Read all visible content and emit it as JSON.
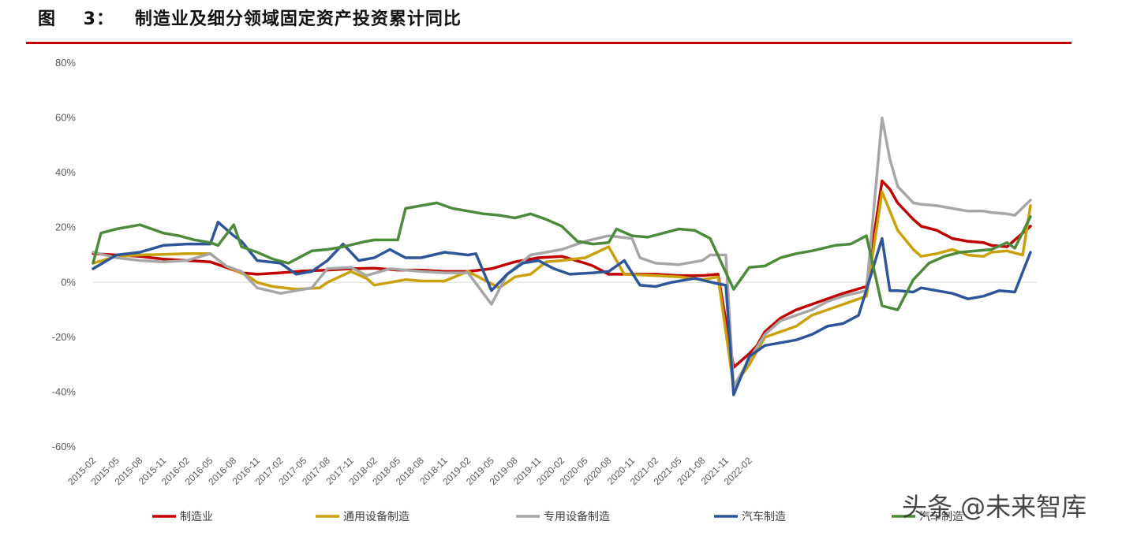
{
  "figure_title": "图    3：   制造业及细分领域固定资产投资累计同比",
  "watermark": "头条 @未来智库",
  "colors": {
    "rule": "#c00000",
    "axis": "#d9d9d9",
    "series": [
      "#c00000",
      "#c9a10a",
      "#a6a6a6",
      "#2e5597",
      "#4e8a3c"
    ]
  },
  "chart_data": {
    "type": "line",
    "ylim": [
      -60,
      80
    ],
    "yticks": [
      -60,
      -40,
      -20,
      0,
      20,
      40,
      60,
      80
    ],
    "ytick_labels": [
      "-60%",
      "-40%",
      "-20%",
      "0%",
      "20%",
      "40%",
      "60%",
      "80%"
    ],
    "xtick_labels": [
      "2015-02",
      "2015-05",
      "2015-08",
      "2015-11",
      "2016-02",
      "2016-05",
      "2016-08",
      "2016-11",
      "2017-02",
      "2017-05",
      "2017-08",
      "2017-11",
      "2018-02",
      "2018-05",
      "2018-08",
      "2018-11",
      "2019-02",
      "2019-05",
      "2019-08",
      "2019-11",
      "2020-02",
      "2020-05",
      "2020-08",
      "2020-11",
      "2021-02",
      "2021-05",
      "2021-08",
      "2021-11",
      "2022-02"
    ],
    "x_start": "2015-02",
    "x_end": "2022-02",
    "legend_position": "bottom",
    "series": [
      {
        "name": "制造业",
        "anchors": [
          [
            0,
            10.5
          ],
          [
            3,
            10
          ],
          [
            6,
            9.5
          ],
          [
            9,
            8.5
          ],
          [
            12,
            8
          ],
          [
            15,
            7.5
          ],
          [
            16,
            6.5
          ],
          [
            18,
            4.5
          ],
          [
            19,
            3.5
          ],
          [
            21,
            3
          ],
          [
            24,
            3.5
          ],
          [
            27,
            4.2
          ],
          [
            30,
            4.5
          ],
          [
            33,
            5
          ],
          [
            36,
            5.2
          ],
          [
            39,
            4.5
          ],
          [
            42,
            4.5
          ],
          [
            45,
            4
          ],
          [
            48,
            4
          ],
          [
            51,
            5
          ],
          [
            54,
            7.5
          ],
          [
            57,
            9
          ],
          [
            60,
            9.5
          ],
          [
            63,
            7
          ],
          [
            64,
            6
          ],
          [
            66,
            3
          ],
          [
            69,
            3
          ],
          [
            72,
            3
          ],
          [
            75,
            2.5
          ],
          [
            78,
            2.5
          ],
          [
            80,
            3
          ],
          [
            82,
            -31
          ],
          [
            84,
            -26
          ],
          [
            85,
            -23
          ],
          [
            86,
            -18
          ],
          [
            88,
            -13
          ],
          [
            90,
            -10
          ],
          [
            92,
            -8
          ],
          [
            94,
            -6
          ],
          [
            96,
            -4
          ],
          [
            99,
            -1.5
          ],
          [
            101,
            37
          ],
          [
            102,
            34
          ],
          [
            103,
            29
          ],
          [
            105,
            23
          ],
          [
            106,
            20.5
          ],
          [
            108,
            19
          ],
          [
            110,
            16
          ],
          [
            112,
            15
          ],
          [
            114,
            14.5
          ],
          [
            115,
            13.5
          ],
          [
            117,
            13
          ],
          [
            120,
            20.5
          ]
        ]
      },
      {
        "name": "通用设备制造",
        "anchors": [
          [
            0,
            7
          ],
          [
            3,
            9.5
          ],
          [
            6,
            10
          ],
          [
            9,
            10.2
          ],
          [
            12,
            10.5
          ],
          [
            15,
            10.5
          ],
          [
            17,
            6
          ],
          [
            20,
            2
          ],
          [
            21,
            0
          ],
          [
            23,
            -1.5
          ],
          [
            26,
            -2.5
          ],
          [
            29,
            -2
          ],
          [
            30,
            0
          ],
          [
            33,
            4
          ],
          [
            35,
            1.5
          ],
          [
            36,
            -1
          ],
          [
            38,
            0
          ],
          [
            40,
            1
          ],
          [
            42,
            0.5
          ],
          [
            45,
            0.5
          ],
          [
            48,
            4
          ],
          [
            50,
            1
          ],
          [
            52,
            -2
          ],
          [
            54,
            2
          ],
          [
            56,
            3
          ],
          [
            58,
            7.5
          ],
          [
            60,
            8
          ],
          [
            63,
            9
          ],
          [
            66,
            13
          ],
          [
            68,
            3
          ],
          [
            72,
            2.5
          ],
          [
            75,
            2
          ],
          [
            78,
            1
          ],
          [
            80,
            2
          ],
          [
            82,
            -38
          ],
          [
            84,
            -30
          ],
          [
            86,
            -20
          ],
          [
            88,
            -18
          ],
          [
            90,
            -16
          ],
          [
            92,
            -12
          ],
          [
            94,
            -10
          ],
          [
            96,
            -8
          ],
          [
            99,
            -5
          ],
          [
            101,
            33
          ],
          [
            102,
            26
          ],
          [
            103,
            19
          ],
          [
            105,
            12
          ],
          [
            106,
            9.5
          ],
          [
            108,
            10.5
          ],
          [
            110,
            12
          ],
          [
            112,
            10
          ],
          [
            114,
            9.5
          ],
          [
            115,
            11
          ],
          [
            117,
            11.5
          ],
          [
            119,
            10
          ],
          [
            120,
            28
          ]
        ]
      },
      {
        "name": "专用设备制造",
        "anchors": [
          [
            0,
            11
          ],
          [
            3,
            9
          ],
          [
            6,
            8
          ],
          [
            9,
            7.5
          ],
          [
            12,
            8
          ],
          [
            15,
            10.5
          ],
          [
            17,
            6
          ],
          [
            19,
            4
          ],
          [
            21,
            -2
          ],
          [
            24,
            -4
          ],
          [
            26,
            -3
          ],
          [
            28,
            -2
          ],
          [
            30,
            5
          ],
          [
            33,
            5.5
          ],
          [
            35,
            2.5
          ],
          [
            38,
            5
          ],
          [
            40,
            4.5
          ],
          [
            42,
            4
          ],
          [
            45,
            3.5
          ],
          [
            48,
            3.5
          ],
          [
            51,
            -8
          ],
          [
            53,
            3
          ],
          [
            56,
            10
          ],
          [
            58,
            11
          ],
          [
            60,
            12
          ],
          [
            63,
            15
          ],
          [
            66,
            17
          ],
          [
            69,
            16
          ],
          [
            70,
            9
          ],
          [
            72,
            7
          ],
          [
            75,
            6.5
          ],
          [
            78,
            8
          ],
          [
            79,
            10
          ],
          [
            81,
            10
          ],
          [
            82,
            -38
          ],
          [
            84,
            -28
          ],
          [
            86,
            -19
          ],
          [
            88,
            -14
          ],
          [
            90,
            -12
          ],
          [
            92,
            -10
          ],
          [
            94,
            -7
          ],
          [
            96,
            -5
          ],
          [
            99,
            -3
          ],
          [
            101,
            60
          ],
          [
            102,
            45
          ],
          [
            103,
            35
          ],
          [
            105,
            29
          ],
          [
            106,
            28.5
          ],
          [
            108,
            28
          ],
          [
            110,
            27
          ],
          [
            112,
            26
          ],
          [
            114,
            26
          ],
          [
            115,
            25.5
          ],
          [
            117,
            25
          ],
          [
            118,
            24.5
          ],
          [
            120,
            30
          ]
        ]
      },
      {
        "name": "汽车制造",
        "anchors": [
          [
            0,
            5
          ],
          [
            3,
            10
          ],
          [
            6,
            11
          ],
          [
            9,
            13.5
          ],
          [
            12,
            14
          ],
          [
            15,
            14
          ],
          [
            16,
            22
          ],
          [
            18,
            17
          ],
          [
            19,
            15
          ],
          [
            21,
            8
          ],
          [
            24,
            7
          ],
          [
            26,
            3
          ],
          [
            28,
            4
          ],
          [
            30,
            8
          ],
          [
            32,
            14
          ],
          [
            34,
            8
          ],
          [
            36,
            9
          ],
          [
            38,
            12
          ],
          [
            40,
            9
          ],
          [
            42,
            9
          ],
          [
            45,
            11
          ],
          [
            48,
            10
          ],
          [
            49,
            10.5
          ],
          [
            51,
            -3
          ],
          [
            53,
            3
          ],
          [
            55,
            7
          ],
          [
            57,
            8
          ],
          [
            59,
            5
          ],
          [
            61,
            3
          ],
          [
            64,
            3.5
          ],
          [
            66,
            4
          ],
          [
            68,
            8
          ],
          [
            70,
            -1
          ],
          [
            72,
            -1.5
          ],
          [
            74,
            0
          ],
          [
            77,
            1.5
          ],
          [
            80,
            -0.5
          ],
          [
            81,
            -1
          ],
          [
            82,
            -41
          ],
          [
            84,
            -27
          ],
          [
            86,
            -23
          ],
          [
            88,
            -22
          ],
          [
            90,
            -21
          ],
          [
            92,
            -19
          ],
          [
            94,
            -16
          ],
          [
            96,
            -15
          ],
          [
            98,
            -12
          ],
          [
            101,
            16
          ],
          [
            102,
            -3
          ],
          [
            103,
            -3
          ],
          [
            105,
            -3.5
          ],
          [
            106,
            -2
          ],
          [
            108,
            -3
          ],
          [
            110,
            -4
          ],
          [
            112,
            -6
          ],
          [
            114,
            -5
          ],
          [
            116,
            -3
          ],
          [
            118,
            -3.5
          ],
          [
            120,
            11
          ]
        ]
      },
      {
        "name": "汽车制造",
        "anchors": [
          [
            0,
            7
          ],
          [
            1,
            18
          ],
          [
            3,
            19.5
          ],
          [
            6,
            21
          ],
          [
            8,
            19
          ],
          [
            9,
            18
          ],
          [
            11,
            17
          ],
          [
            13,
            15.5
          ],
          [
            15,
            14.5
          ],
          [
            16,
            13.5
          ],
          [
            18,
            21
          ],
          [
            19,
            13
          ],
          [
            21,
            11
          ],
          [
            23,
            8.5
          ],
          [
            25,
            7
          ],
          [
            28,
            11.5
          ],
          [
            30,
            12
          ],
          [
            32,
            13
          ],
          [
            35,
            15
          ],
          [
            36,
            15.5
          ],
          [
            39,
            15.5
          ],
          [
            40,
            27
          ],
          [
            42,
            28
          ],
          [
            44,
            29
          ],
          [
            46,
            27
          ],
          [
            48,
            26
          ],
          [
            50,
            25
          ],
          [
            52,
            24.5
          ],
          [
            54,
            23.5
          ],
          [
            56,
            25
          ],
          [
            58,
            23
          ],
          [
            60,
            20.5
          ],
          [
            62,
            15
          ],
          [
            64,
            14
          ],
          [
            66,
            14.5
          ],
          [
            67,
            19.5
          ],
          [
            69,
            17
          ],
          [
            71,
            16.5
          ],
          [
            73,
            18
          ],
          [
            75,
            19.5
          ],
          [
            77,
            19
          ],
          [
            79,
            16
          ],
          [
            82,
            -2.5
          ],
          [
            84,
            5.5
          ],
          [
            86,
            6
          ],
          [
            88,
            9
          ],
          [
            90,
            10.5
          ],
          [
            92,
            11.5
          ],
          [
            95,
            13.5
          ],
          [
            97,
            14
          ],
          [
            99,
            17
          ],
          [
            101,
            -8.5
          ],
          [
            103,
            -10
          ],
          [
            105,
            1
          ],
          [
            107,
            7
          ],
          [
            109,
            9.5
          ],
          [
            111,
            11
          ],
          [
            113,
            11.5
          ],
          [
            115,
            12
          ],
          [
            117,
            14.5
          ],
          [
            118,
            12.5
          ],
          [
            120,
            24
          ]
        ]
      }
    ]
  }
}
